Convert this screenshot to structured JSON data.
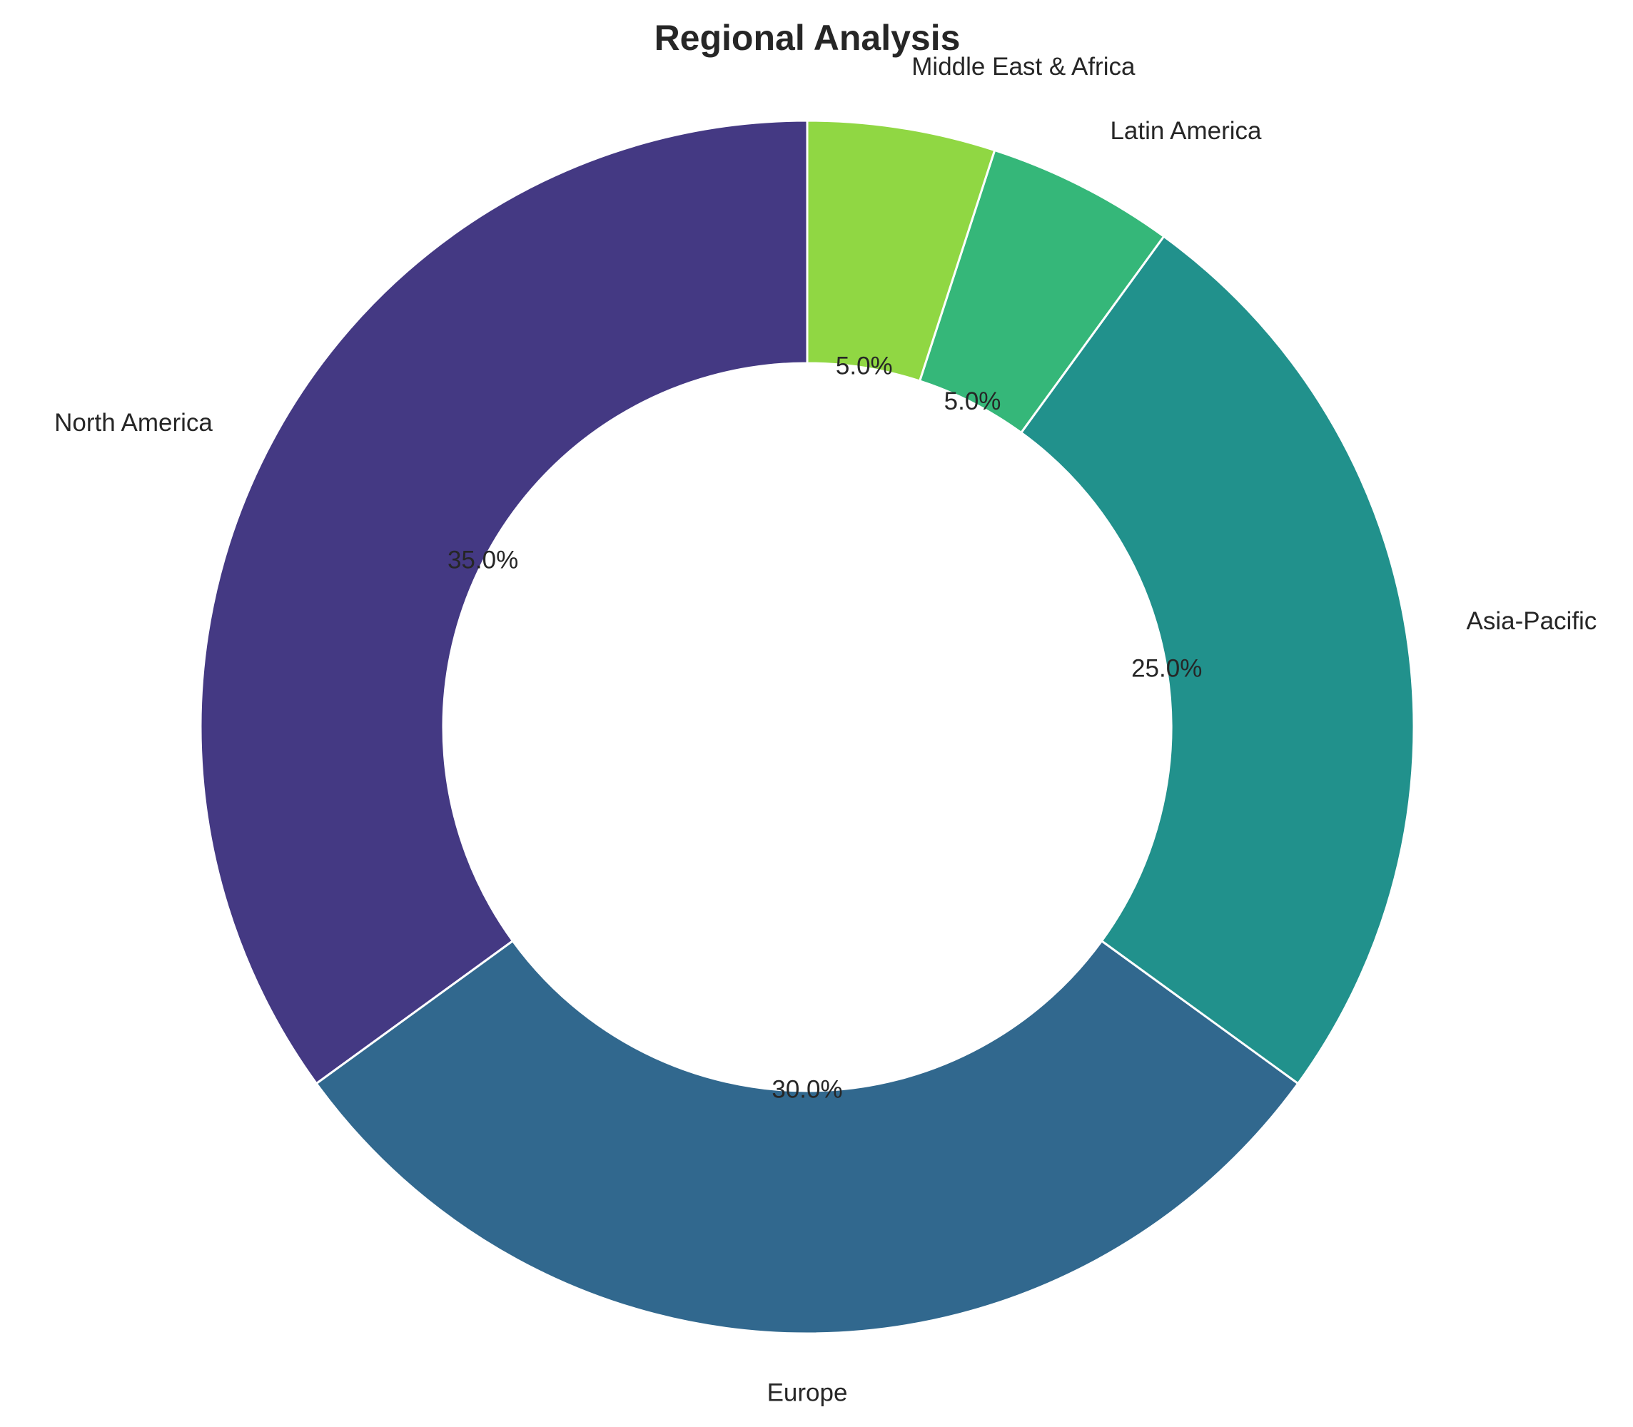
{
  "chart_data": {
    "type": "pie",
    "donut": true,
    "title": "Regional Analysis",
    "categories": [
      "North America",
      "Europe",
      "Asia-Pacific",
      "Latin America",
      "Middle East & Africa"
    ],
    "values": [
      35.0,
      30.0,
      25.0,
      5.0,
      5.0
    ],
    "value_labels": [
      "35.0%",
      "30.0%",
      "25.0%",
      "5.0%",
      "5.0%"
    ],
    "colors": [
      "#443983",
      "#31688e",
      "#21918c",
      "#35b779",
      "#90d743"
    ],
    "start_angle_deg": 90,
    "direction": "counterclockwise",
    "edge_color": "#ffffff"
  }
}
